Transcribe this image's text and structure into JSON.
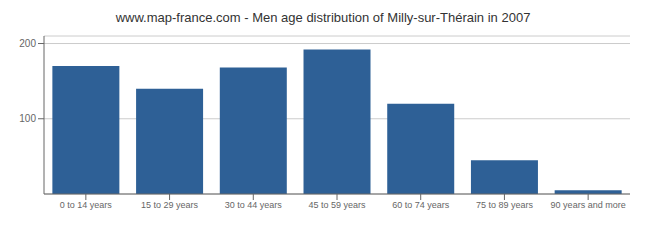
{
  "chart_data": {
    "type": "bar",
    "title": "www.map-france.com - Men age distribution of Milly-sur-Thérain in 2007",
    "categories": [
      "0 to 14 years",
      "15 to 29 years",
      "30 to 44 years",
      "45 to 59 years",
      "60 to 74 years",
      "75 to 89 years",
      "90 years and more"
    ],
    "values": [
      170,
      140,
      168,
      192,
      120,
      45,
      5
    ],
    "color": "#2e6096",
    "ylim": [
      0,
      210
    ],
    "yticks": [
      100,
      200
    ],
    "grid": true
  }
}
